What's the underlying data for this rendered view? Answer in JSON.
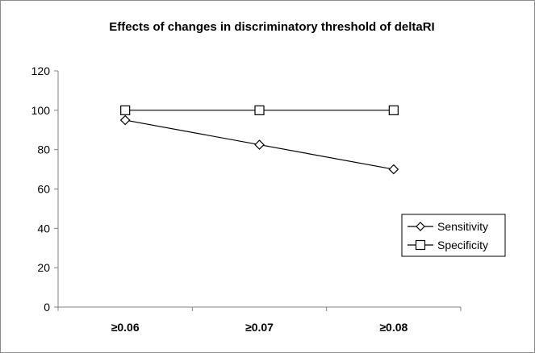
{
  "chart_data": {
    "type": "line",
    "title": "Effects of changes in discriminatory threshold of deltaRI",
    "categories": [
      "≥0.06",
      "≥0.07",
      "≥0.08"
    ],
    "series": [
      {
        "name": "Sensitivity",
        "values": [
          95,
          82.5,
          70
        ],
        "marker": "diamond"
      },
      {
        "name": "Specificity",
        "values": [
          100,
          100,
          100
        ],
        "marker": "square"
      }
    ],
    "xlabel": "",
    "ylabel": "",
    "ylim": [
      0,
      120
    ],
    "yticks": [
      0,
      20,
      40,
      60,
      80,
      100,
      120
    ],
    "grid": false,
    "legend_position": "right",
    "colors": {
      "line": "#000000",
      "marker_fill": "#ffffff",
      "frame": "#8c8c8c",
      "axis": "#808080"
    }
  }
}
